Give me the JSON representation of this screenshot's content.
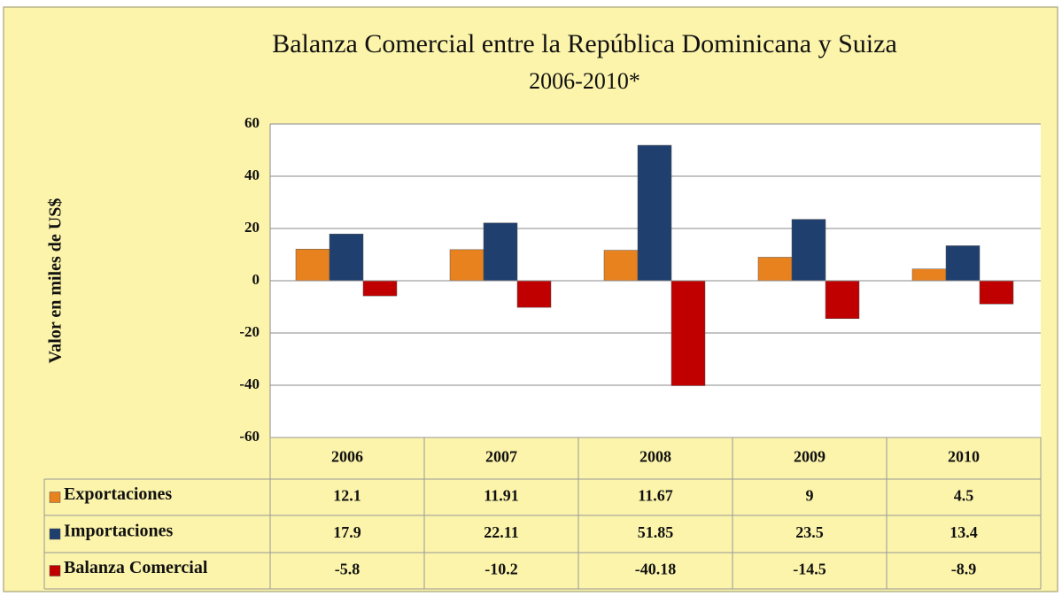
{
  "chart_data": {
    "type": "bar",
    "title": "Balanza Comercial entre la República Dominicana y Suiza",
    "subtitle": "2006-2010*",
    "y_axis_label": "Valor en miles de US$",
    "categories": [
      "2006",
      "2007",
      "2008",
      "2009",
      "2010"
    ],
    "series": [
      {
        "name": "Exportaciones",
        "color": "#e8821e",
        "values": [
          12.1,
          11.91,
          11.67,
          9,
          4.5
        ]
      },
      {
        "name": "Importaciones",
        "color": "#1f3f6e",
        "values": [
          17.9,
          22.11,
          51.85,
          23.5,
          13.4
        ]
      },
      {
        "name": "Balanza Comercial",
        "color": "#c00000",
        "values": [
          -5.8,
          -10.2,
          -40.18,
          -14.5,
          -8.9
        ]
      }
    ],
    "ylim": [
      -60,
      60
    ],
    "yticks": [
      -60,
      -40,
      -20,
      0,
      20,
      40,
      60
    ],
    "grid": true
  }
}
